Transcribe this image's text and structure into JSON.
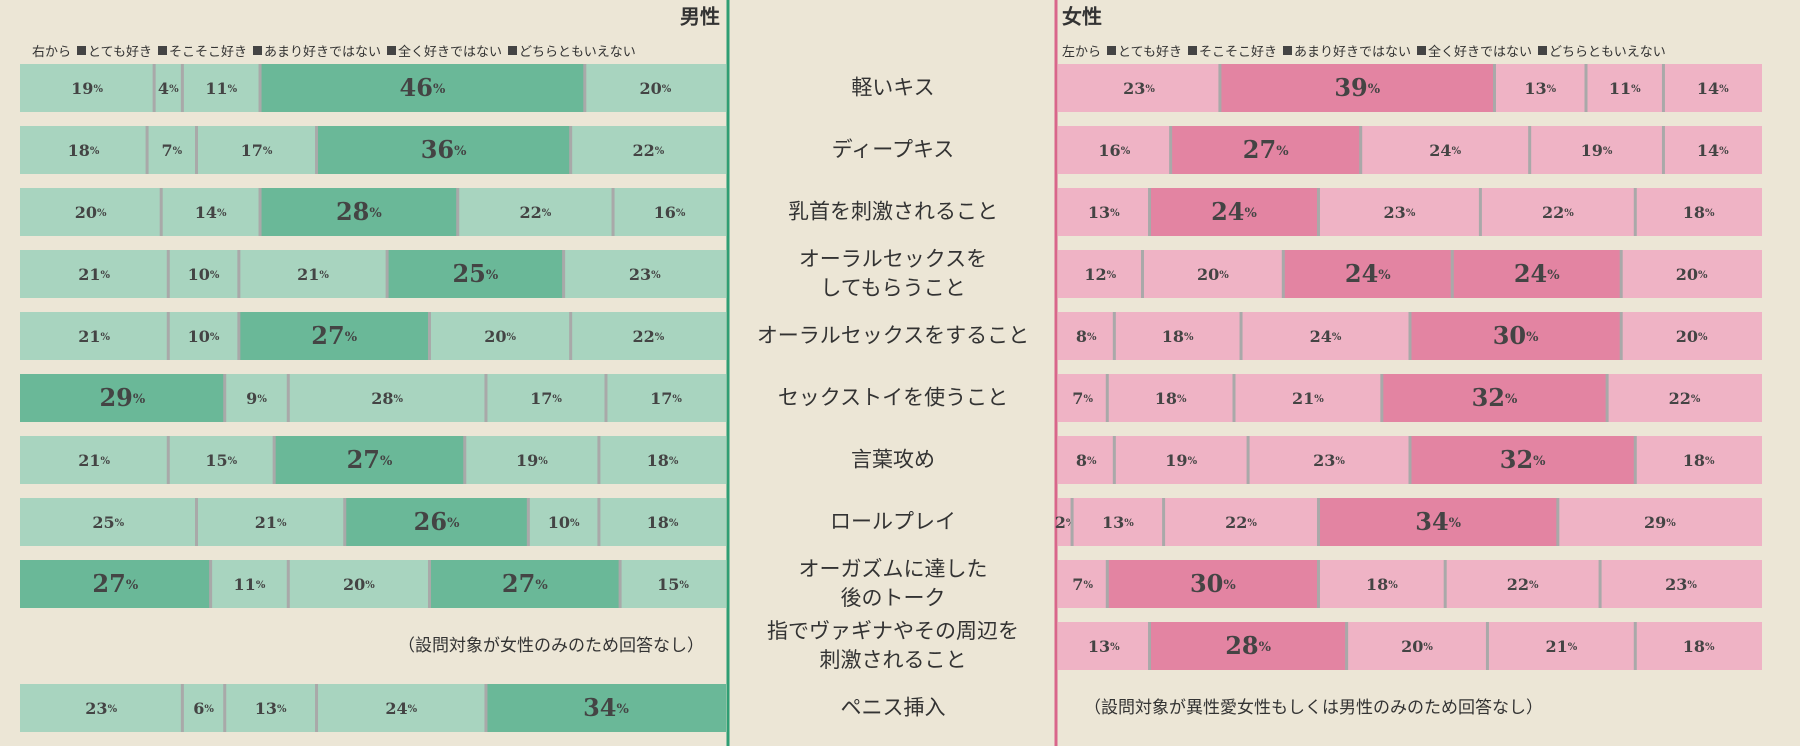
{
  "chart_data": [
    {
      "type": "stacked-bar",
      "title": "男性",
      "legend_prefix": "右から",
      "direction": "right-to-left",
      "color": "#a8d4bf",
      "highlight_color": "#6ab898",
      "axis_color": "#2f9e74",
      "xlim": [
        0,
        100
      ],
      "note": "（設問対象が女性のみのため回答なし）",
      "categories": [
        "軽いキス",
        "ディープキス",
        "乳首を刺激されること",
        "オーラルセックスを\nしてもらうこと",
        "オーラルセックスをすること",
        "セックストイを使うこと",
        "言葉攻め",
        "ロールプレイ",
        "オーガズムに達した\n後のトーク",
        "指でヴァギナやその周辺を\n刺激されること",
        "ペニス挿入"
      ],
      "series": [
        {
          "name": "とても好き",
          "values": [
            20,
            22,
            16,
            23,
            22,
            17,
            18,
            18,
            15,
            null,
            34
          ],
          "value_labels": [
            "20%",
            "22%",
            "16%",
            "23%",
            "22%",
            "17%",
            "18%",
            "18%",
            "15%",
            null,
            "34%"
          ]
        },
        {
          "name": "そこそこ好き",
          "values": [
            46,
            36,
            22,
            25,
            20,
            17,
            19,
            10,
            27,
            null,
            24
          ],
          "value_labels": [
            "46%",
            "36%",
            "22%",
            "25%",
            "20%",
            "17%",
            "19%",
            "10%",
            "27%",
            null,
            "24%"
          ]
        },
        {
          "name": "あまり好きではない",
          "values": [
            11,
            17,
            28,
            21,
            27,
            28,
            27,
            26,
            20,
            null,
            13
          ],
          "value_labels": [
            "11%",
            "17%",
            "28%",
            "21%",
            "27%",
            "28%",
            "27%",
            "26%",
            "20%",
            null,
            "13%"
          ]
        },
        {
          "name": "全く好きではない",
          "values": [
            4,
            7,
            14,
            10,
            10,
            9,
            15,
            21,
            11,
            null,
            6
          ],
          "value_labels": [
            "4%",
            "7%",
            "14%",
            "10%",
            "10%",
            "9%",
            "15%",
            "21%",
            "11%",
            null,
            "6%"
          ]
        },
        {
          "name": "どちらともいえない",
          "values": [
            19,
            18,
            20,
            21,
            21,
            29,
            21,
            25,
            27,
            null,
            23
          ],
          "value_labels": [
            "19%",
            "18%",
            "20%",
            "21%",
            "21%",
            "29%",
            "21%",
            "25%",
            "27%",
            null,
            "23%"
          ]
        }
      ]
    },
    {
      "type": "stacked-bar",
      "title": "女性",
      "legend_prefix": "左から",
      "direction": "left-to-right",
      "color": "#efb3c5",
      "highlight_color": "#e384a2",
      "axis_color": "#d9668b",
      "xlim": [
        0,
        100
      ],
      "note": "（設問対象が異性愛女性もしくは男性のみのため回答なし）",
      "series": [
        {
          "name": "とても好き",
          "values": [
            23,
            16,
            13,
            12,
            8,
            7,
            8,
            2,
            7,
            13,
            null
          ],
          "value_labels": [
            "23%",
            "16%",
            "13%",
            "12%",
            "8%",
            "7%",
            "8%",
            "2%",
            "7%",
            "13%",
            null
          ]
        },
        {
          "name": "そこそこ好き",
          "values": [
            39,
            27,
            24,
            20,
            18,
            18,
            19,
            13,
            30,
            28,
            null
          ],
          "value_labels": [
            "39%",
            "27%",
            "24%",
            "20%",
            "18%",
            "18%",
            "19%",
            "13%",
            "30%",
            "28%",
            null
          ]
        },
        {
          "name": "あまり好きではない",
          "values": [
            13,
            24,
            23,
            24,
            24,
            21,
            23,
            22,
            18,
            20,
            null
          ],
          "value_labels": [
            "13%",
            "24%",
            "23%",
            "24%",
            "24%",
            "21%",
            "23%",
            "22%",
            "18%",
            "20%",
            null
          ]
        },
        {
          "name": "全く好きではない",
          "values": [
            11,
            19,
            22,
            24,
            30,
            32,
            32,
            34,
            22,
            21,
            null
          ],
          "value_labels": [
            "11%",
            "19%",
            "22%",
            "24%",
            "30%",
            "32%",
            "32%",
            "34%",
            "22%",
            "21%",
            null
          ]
        },
        {
          "name": "どちらともいえない",
          "values": [
            14,
            14,
            18,
            20,
            20,
            22,
            18,
            29,
            23,
            18,
            null
          ],
          "value_labels": [
            "14%",
            "14%",
            "18%",
            "20%",
            "20%",
            "22%",
            "18%",
            "29%",
            "23%",
            "18%",
            null
          ]
        }
      ]
    }
  ]
}
